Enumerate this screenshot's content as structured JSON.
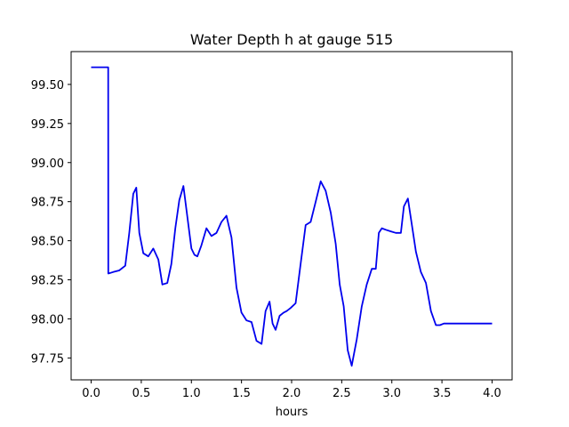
{
  "chart_data": {
    "type": "line",
    "title": "Water Depth h at gauge 515",
    "xlabel": "hours",
    "ylabel": "",
    "xlim": [
      -0.2,
      4.2
    ],
    "ylim": [
      97.61,
      99.71
    ],
    "xticks": [
      0.0,
      0.5,
      1.0,
      1.5,
      2.0,
      2.5,
      3.0,
      3.5,
      4.0
    ],
    "xtick_labels": [
      "0.0",
      "0.5",
      "1.0",
      "1.5",
      "2.0",
      "2.5",
      "3.0",
      "3.5",
      "4.0"
    ],
    "yticks": [
      97.75,
      98.0,
      98.25,
      98.5,
      98.75,
      99.0,
      99.25,
      99.5
    ],
    "ytick_labels": [
      "97.75",
      "98.00",
      "98.25",
      "98.50",
      "98.75",
      "99.00",
      "99.25",
      "99.50"
    ],
    "grid": false,
    "series": [
      {
        "color": "#0000ee",
        "x": [
          0.0,
          0.17,
          0.171,
          0.22,
          0.28,
          0.34,
          0.38,
          0.42,
          0.45,
          0.48,
          0.52,
          0.57,
          0.62,
          0.67,
          0.71,
          0.76,
          0.8,
          0.84,
          0.88,
          0.92,
          0.96,
          1.0,
          1.03,
          1.06,
          1.1,
          1.15,
          1.2,
          1.25,
          1.3,
          1.35,
          1.4,
          1.45,
          1.5,
          1.55,
          1.6,
          1.65,
          1.7,
          1.74,
          1.78,
          1.81,
          1.84,
          1.88,
          1.92,
          1.95,
          1.99,
          2.04,
          2.09,
          2.14,
          2.19,
          2.24,
          2.29,
          2.34,
          2.39,
          2.44,
          2.48,
          2.52,
          2.56,
          2.6,
          2.65,
          2.7,
          2.75,
          2.8,
          2.84,
          2.87,
          2.9,
          2.94,
          2.99,
          3.04,
          3.09,
          3.12,
          3.16,
          3.2,
          3.24,
          3.29,
          3.34,
          3.39,
          3.44,
          3.48,
          3.52,
          3.56,
          3.6,
          3.65,
          3.7,
          3.75,
          3.8,
          3.85,
          3.9,
          3.95,
          4.0
        ],
        "values": [
          99.61,
          99.61,
          98.29,
          98.3,
          98.31,
          98.34,
          98.55,
          98.8,
          98.84,
          98.55,
          98.42,
          98.4,
          98.45,
          98.38,
          98.22,
          98.23,
          98.35,
          98.58,
          98.76,
          98.85,
          98.65,
          98.45,
          98.41,
          98.4,
          98.47,
          98.58,
          98.53,
          98.55,
          98.62,
          98.66,
          98.52,
          98.2,
          98.04,
          97.99,
          97.98,
          97.86,
          97.84,
          98.05,
          98.11,
          97.97,
          97.93,
          98.02,
          98.04,
          98.05,
          98.07,
          98.1,
          98.35,
          98.6,
          98.62,
          98.75,
          98.88,
          98.82,
          98.68,
          98.48,
          98.22,
          98.08,
          97.8,
          97.7,
          97.87,
          98.08,
          98.22,
          98.32,
          98.32,
          98.55,
          98.58,
          98.57,
          98.56,
          98.55,
          98.55,
          98.72,
          98.77,
          98.6,
          98.43,
          98.3,
          98.23,
          98.05,
          97.96,
          97.96,
          97.97,
          97.97,
          97.97,
          97.97,
          97.97,
          97.97,
          97.97,
          97.97,
          97.97,
          97.97,
          97.97
        ]
      }
    ]
  }
}
